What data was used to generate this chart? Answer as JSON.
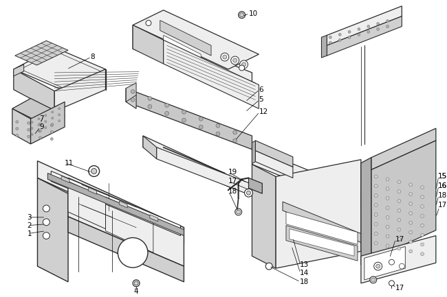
{
  "bg_color": "#ffffff",
  "lc": "#2a2a2a",
  "fl": "#eeeeee",
  "fm": "#d0d0d0",
  "fd": "#b0b0b0",
  "ft": "#c8c8c8",
  "fw": 6.5,
  "fh": 4.33,
  "dpi": 100
}
